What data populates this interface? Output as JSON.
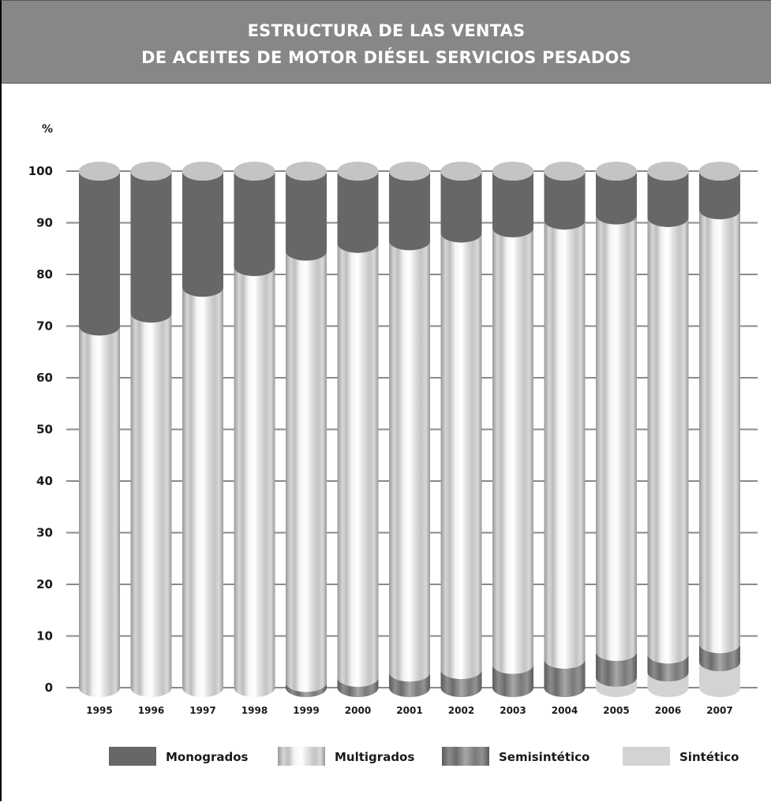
{
  "chart_data": {
    "type": "bar",
    "stacked": true,
    "title_line1": "ESTRUCTURA DE LAS VENTAS",
    "title_line2": "DE ACEITES DE MOTOR DIÉSEL SERVICIOS PESADOS",
    "ylabel": "%",
    "ylim": [
      0,
      100
    ],
    "yticks": [
      0,
      10,
      20,
      30,
      40,
      50,
      60,
      70,
      80,
      90,
      100
    ],
    "grid": true,
    "legend_position": "bottom",
    "categories": [
      "1995",
      "1996",
      "1997",
      "1998",
      "1999",
      "2000",
      "2001",
      "2002",
      "2003",
      "2004",
      "2005",
      "2006",
      "2007"
    ],
    "series": [
      {
        "name": "Sintético",
        "values": [
          0,
          0,
          0,
          0,
          0,
          0,
          0,
          0,
          0,
          0,
          2,
          3,
          5
        ]
      },
      {
        "name": "Semisintético",
        "values": [
          0,
          0,
          0,
          0,
          1,
          2,
          3,
          3.5,
          4.5,
          5.5,
          5,
          3.5,
          3.5
        ]
      },
      {
        "name": "Multigrados",
        "values": [
          70,
          72.5,
          77.5,
          81.5,
          83.5,
          84,
          83.5,
          84.5,
          84.5,
          85,
          84.5,
          84.5,
          84
        ]
      },
      {
        "name": "Monogrados",
        "values": [
          30,
          27.5,
          22.5,
          18.5,
          15.5,
          14,
          13.5,
          12,
          11,
          9.5,
          8.5,
          9,
          7.5
        ]
      }
    ]
  },
  "legend": [
    {
      "label": "Monogrados",
      "key": "mono"
    },
    {
      "label": "Multigrados",
      "key": "multi"
    },
    {
      "label": "Semisintético",
      "key": "semi"
    },
    {
      "label": "Sintético",
      "key": "sint"
    }
  ]
}
